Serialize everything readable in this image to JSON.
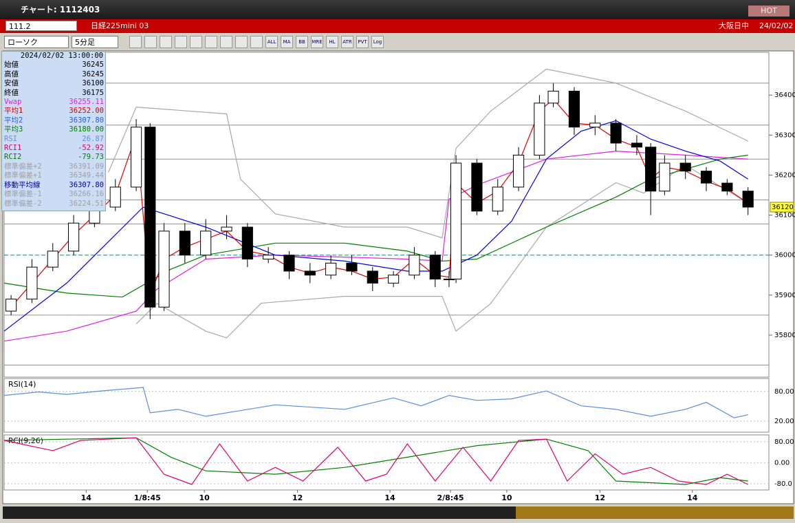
{
  "window": {
    "title": "チャート: 1112403",
    "hot": "HOT"
  },
  "header": {
    "code": "111.2",
    "instrument": "日経225mini 03",
    "session": "大阪日中",
    "date": "24/02/02"
  },
  "toolbar": {
    "chart_type": "ローソク",
    "interval": "5分足",
    "buttons": [
      "ALL",
      "MA",
      "BB",
      "MRE",
      "HL",
      "ATR",
      "PVT",
      "Log"
    ]
  },
  "info_panel": {
    "datetime": "2024/02/02 13:00:00",
    "rows": [
      {
        "label": "始値",
        "value": "36245",
        "color": "#000000"
      },
      {
        "label": "高値",
        "value": "36245",
        "color": "#000000"
      },
      {
        "label": "安値",
        "value": "36100",
        "color": "#000000"
      },
      {
        "label": "終値",
        "value": "36175",
        "color": "#000000"
      },
      {
        "label": "Vwap",
        "value": "36255.11",
        "color": "#e020e0"
      },
      {
        "label": "平均1",
        "value": "36252.00",
        "color": "#e00000"
      },
      {
        "label": "平均2",
        "value": "36307.80",
        "color": "#2060e0"
      },
      {
        "label": "平均3",
        "value": "36180.00",
        "color": "#008000"
      },
      {
        "label": "RSI",
        "value": "26.87",
        "color": "#6090e0"
      },
      {
        "label": "RCI1",
        "value": "-52.92",
        "color": "#e00070"
      },
      {
        "label": "RCI2",
        "value": "-79.73",
        "color": "#008000"
      },
      {
        "label": "標準偏差+2",
        "value": "36391.09",
        "color": "#a0a0a0"
      },
      {
        "label": "標準偏差+1",
        "value": "36349.44",
        "color": "#a0a0a0"
      },
      {
        "label": "移動平均線",
        "value": "36307.80",
        "color": "#0000a0"
      },
      {
        "label": "標準偏差-1",
        "value": "36266.16",
        "color": "#a0a0a0"
      },
      {
        "label": "標準偏差-2",
        "value": "36224.51",
        "color": "#a0a0a0"
      }
    ]
  },
  "chart_data": [
    {
      "type": "candlestick",
      "xlim": [
        0,
        110
      ],
      "ylim": [
        35695,
        36507
      ],
      "yticks": [
        35800,
        35900,
        36000,
        36100,
        36200,
        36300,
        36400
      ],
      "grid": false,
      "up_color": "#ffffff",
      "down_color": "#000000",
      "x": [
        1,
        4,
        7,
        10,
        13,
        16,
        19,
        21,
        23,
        26,
        29,
        32,
        35,
        38,
        41,
        44,
        47,
        50,
        53,
        56,
        59,
        62,
        64,
        65,
        68,
        71,
        74,
        77,
        79,
        82,
        85,
        88,
        91,
        93,
        95,
        98,
        101,
        104,
        107
      ],
      "open": [
        35860,
        35890,
        35970,
        36010,
        36080,
        36120,
        36170,
        36320,
        35870,
        36060,
        36000,
        36060,
        36070,
        35990,
        36000,
        35960,
        35950,
        35980,
        35960,
        35930,
        35950,
        36000,
        35940,
        35940,
        36230,
        36110,
        36170,
        36250,
        36380,
        36410,
        36320,
        36330,
        36280,
        36270,
        36160,
        36230,
        36210,
        36180,
        36160
      ],
      "high": [
        35900,
        35990,
        36030,
        36100,
        36140,
        36190,
        36340,
        36330,
        36080,
        36080,
        36090,
        36100,
        36080,
        36020,
        36010,
        35980,
        36000,
        36000,
        35970,
        35960,
        36020,
        36010,
        35960,
        36250,
        36240,
        36190,
        36270,
        36400,
        36430,
        36420,
        36350,
        36340,
        36300,
        36280,
        36250,
        36250,
        36220,
        36190,
        36170
      ],
      "low": [
        35850,
        35880,
        35960,
        36000,
        36070,
        36110,
        36160,
        35840,
        35860,
        35980,
        35990,
        36040,
        35970,
        35980,
        35940,
        35930,
        35940,
        35950,
        35910,
        35920,
        35940,
        35920,
        35920,
        35930,
        36100,
        36100,
        36160,
        36240,
        36370,
        36300,
        36300,
        36260,
        36250,
        36100,
        36150,
        36190,
        36160,
        36150,
        36100
      ],
      "close": [
        35890,
        35970,
        36010,
        36080,
        36120,
        36170,
        36320,
        35870,
        36060,
        36000,
        36060,
        36070,
        35990,
        36000,
        35960,
        35950,
        35980,
        35960,
        35930,
        35950,
        36000,
        35940,
        35940,
        36230,
        36110,
        36170,
        36250,
        36380,
        36410,
        36320,
        36330,
        36280,
        36270,
        36160,
        36230,
        36210,
        36180,
        36160,
        36120
      ],
      "ref_lines": {
        "color": "#909090",
        "values": [
          36430,
          36325,
          36240,
          36138,
          36078,
          35850,
          35725
        ]
      },
      "baseline": {
        "color": "#208080",
        "value": 36000
      },
      "last_price": 36120,
      "series": [
        {
          "color": "#a8a8a8",
          "x": [
            15,
            19,
            32,
            34,
            39,
            49,
            58,
            63,
            65,
            70,
            78,
            88,
            98,
            107
          ],
          "values": [
            36207,
            36370,
            36353,
            36190,
            36103,
            36070,
            36070,
            36043,
            36267,
            36360,
            36465,
            36430,
            36360,
            36285
          ]
        },
        {
          "color": "#a8a8a8",
          "x": [
            19,
            22,
            29,
            32,
            37,
            49,
            63,
            65,
            70,
            78,
            88,
            92,
            98,
            107
          ],
          "values": [
            35828,
            35879,
            35810,
            35793,
            35880,
            35897,
            35897,
            35810,
            35879,
            36070,
            36181,
            36155,
            36225,
            36130
          ]
        },
        {
          "color": "#e020e0",
          "x": [
            0,
            9,
            19,
            22,
            29,
            39,
            49,
            58,
            63,
            64,
            68,
            78,
            88,
            98,
            107
          ],
          "values": [
            35785,
            35810,
            35860,
            35915,
            35990,
            36000,
            35995,
            35990,
            35985,
            36140,
            36175,
            36240,
            36260,
            36250,
            36240
          ]
        },
        {
          "color": "#008000",
          "x": [
            0,
            9,
            17,
            24,
            29,
            39,
            49,
            58,
            63,
            68,
            78,
            88,
            93,
            98,
            103,
            107
          ],
          "values": [
            35930,
            35905,
            35895,
            35965,
            36000,
            36030,
            36030,
            36010,
            35985,
            35990,
            36070,
            36145,
            36190,
            36215,
            36240,
            36250
          ]
        },
        {
          "color": "#0000e0",
          "x": [
            0,
            9,
            20,
            29,
            39,
            49,
            58,
            63,
            68,
            73,
            78,
            83,
            88,
            93,
            98,
            103,
            107
          ],
          "values": [
            35810,
            35930,
            36120,
            36070,
            36000,
            35985,
            35960,
            35960,
            36000,
            36085,
            36240,
            36310,
            36336,
            36290,
            36260,
            36235,
            36190
          ]
        },
        {
          "color": "#e00000",
          "x": [
            1,
            4,
            7,
            10,
            13,
            16,
            19,
            21,
            23,
            26,
            29,
            32,
            35,
            38,
            41,
            44,
            47,
            50,
            53,
            56,
            59,
            62,
            64,
            65,
            68,
            71,
            74,
            77,
            79,
            82,
            85,
            88,
            91,
            93,
            95,
            98,
            101,
            104,
            107
          ],
          "values": [
            35870,
            35930,
            35990,
            36050,
            36100,
            36150,
            36300,
            35900,
            35990,
            36020,
            36040,
            36060,
            36010,
            36000,
            35970,
            35955,
            35970,
            35960,
            35940,
            35945,
            35990,
            35950,
            35945,
            36180,
            36130,
            36160,
            36230,
            36360,
            36390,
            36330,
            36325,
            36290,
            36270,
            36190,
            36220,
            36210,
            36185,
            36165,
            36130
          ]
        }
      ]
    },
    {
      "type": "line",
      "title": "RSI(14)",
      "xlim": [
        0,
        110
      ],
      "ylim": [
        -2,
        106
      ],
      "grid": true,
      "yticks": [
        {
          "value": 20,
          "label": "20.00"
        },
        {
          "value": 80,
          "label": "80.00"
        }
      ],
      "series": [
        {
          "color": "#5a8ed8",
          "x": [
            0,
            5,
            9,
            14,
            20,
            21,
            25,
            29,
            39,
            49,
            56,
            60,
            64,
            68,
            73,
            78,
            83,
            88,
            93,
            98,
            101,
            105,
            107
          ],
          "values": [
            72,
            79,
            74,
            81,
            88,
            37,
            44,
            30,
            53,
            44,
            67,
            51,
            72,
            62,
            65,
            81,
            51,
            44,
            30,
            44,
            58,
            27,
            33
          ]
        }
      ]
    },
    {
      "type": "line",
      "title": "RCI(9,26)",
      "xlim": [
        0,
        110
      ],
      "ylim": [
        -104,
        106
      ],
      "grid": true,
      "yticks": [
        {
          "value": -80,
          "label": "-80.0"
        },
        {
          "value": 0,
          "label": "0.00"
        },
        {
          "value": 80,
          "label": "80.00"
        }
      ],
      "xticks": [
        {
          "value": 11.8,
          "label": "14"
        },
        {
          "value": 20.6,
          "label": "1/8:45"
        },
        {
          "value": 28.8,
          "label": "10"
        },
        {
          "value": 42.2,
          "label": "12"
        },
        {
          "value": 55.5,
          "label": "14"
        },
        {
          "value": 64.2,
          "label": "2/8:45"
        },
        {
          "value": 72.3,
          "label": "10"
        },
        {
          "value": 85.7,
          "label": "12"
        },
        {
          "value": 99,
          "label": "14"
        }
      ],
      "series": [
        {
          "color": "#008000",
          "x": [
            0,
            19,
            24,
            29,
            39,
            49,
            58,
            68,
            78,
            84,
            88,
            98,
            103,
            107
          ],
          "values": [
            85,
            95,
            21,
            -31,
            -44,
            -18,
            21,
            65,
            90,
            46,
            -70,
            -83,
            -57,
            -70
          ]
        },
        {
          "color": "#e00070",
          "x": [
            0,
            7,
            11,
            19,
            23,
            27,
            31,
            35,
            39,
            43,
            48,
            52,
            55,
            58,
            62,
            66,
            70,
            74,
            78,
            81,
            85,
            89,
            93,
            97,
            101,
            104,
            107
          ],
          "values": [
            85,
            46,
            85,
            95,
            -44,
            -83,
            72,
            -70,
            -18,
            -70,
            59,
            -70,
            -44,
            72,
            -70,
            59,
            -70,
            85,
            90,
            -70,
            34,
            -44,
            -18,
            -70,
            -83,
            -44,
            -83
          ]
        }
      ]
    }
  ]
}
